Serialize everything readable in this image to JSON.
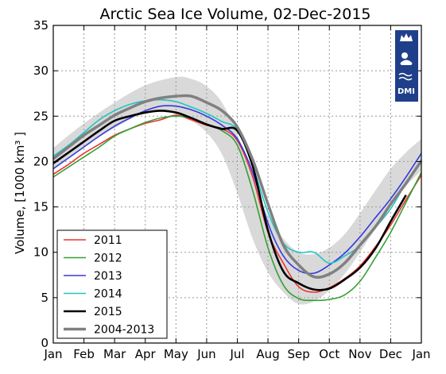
{
  "chart_data": {
    "type": "line",
    "title": "Arctic Sea Ice Volume, 02-Dec-2015",
    "ylabel": "Volume, [1000 km³ ]",
    "xlabel": "",
    "ylim": [
      0,
      35
    ],
    "xlim": [
      0,
      12
    ],
    "grid": true,
    "legend_position": "bottom-left",
    "x_tick_labels": [
      "Jan",
      "Feb",
      "Mar",
      "Apr",
      "May",
      "Jun",
      "Jul",
      "Aug",
      "Sep",
      "Oct",
      "Nov",
      "Dec",
      "Jan"
    ],
    "y_ticks": [
      0,
      5,
      10,
      15,
      20,
      25,
      30,
      35
    ],
    "x": [
      0,
      0.5,
      1,
      1.5,
      2,
      2.5,
      3,
      3.5,
      4,
      4.5,
      5,
      5.5,
      6,
      6.5,
      7,
      7.5,
      8,
      8.5,
      9,
      9.5,
      10,
      10.5,
      11,
      11.5,
      12
    ],
    "band": {
      "name": "2004-2013",
      "x": [
        0,
        1,
        2,
        3,
        4,
        4.5,
        5,
        5.5,
        6,
        6.5,
        7,
        7.5,
        8,
        8.5,
        9,
        9.5,
        10,
        10.5,
        11,
        11.5,
        12
      ],
      "upper": [
        21.5,
        24.2,
        26.5,
        28.4,
        29.3,
        29.1,
        28.3,
        26.5,
        23.0,
        18.2,
        14.0,
        11.5,
        10.0,
        9.8,
        10.5,
        12.0,
        14.3,
        16.8,
        19.2,
        21.0,
        22.5
      ],
      "lower": [
        19.2,
        21.6,
        23.7,
        25.3,
        25.3,
        24.5,
        23.2,
        20.8,
        16.5,
        11.5,
        7.8,
        5.6,
        4.3,
        4.6,
        5.8,
        7.6,
        10.0,
        12.6,
        15.1,
        17.3,
        19.0
      ]
    },
    "series": [
      {
        "name": "2011",
        "color": "#ee3333",
        "values": [
          18.6,
          19.7,
          20.9,
          21.9,
          22.9,
          23.6,
          24.2,
          24.6,
          25.1,
          24.6,
          24.0,
          23.6,
          22.3,
          18.3,
          12.2,
          8.8,
          6.2,
          5.6,
          6.1,
          7.1,
          8.5,
          10.6,
          13.0,
          15.8,
          18.5
        ]
      },
      {
        "name": "2012",
        "color": "#33a033",
        "values": [
          18.3,
          19.4,
          20.5,
          21.6,
          22.8,
          23.6,
          24.3,
          24.8,
          25.0,
          24.8,
          24.1,
          23.4,
          21.8,
          16.8,
          10.5,
          6.4,
          4.9,
          4.7,
          4.8,
          5.3,
          6.8,
          9.4,
          12.2,
          15.5,
          18.8
        ]
      },
      {
        "name": "2013",
        "color": "#3838e0",
        "values": [
          19.2,
          20.4,
          21.6,
          22.8,
          23.9,
          24.8,
          25.6,
          26.1,
          26.1,
          25.7,
          25.0,
          24.0,
          22.5,
          18.8,
          13.2,
          9.6,
          8.0,
          7.7,
          8.6,
          9.9,
          11.7,
          13.8,
          15.9,
          18.3,
          20.9
        ]
      },
      {
        "name": "2014",
        "color": "#22c4c4",
        "values": [
          20.6,
          21.8,
          23.2,
          24.6,
          25.6,
          26.3,
          26.7,
          26.8,
          26.6,
          26.0,
          25.3,
          24.4,
          23.5,
          19.5,
          14.4,
          11.0,
          10.0,
          10.0,
          8.8,
          9.6,
          10.7,
          12.7,
          14.8,
          17.6,
          19.9
        ]
      },
      {
        "name": "2015",
        "color": "#000000",
        "values": [
          19.8,
          21.0,
          22.2,
          23.4,
          24.5,
          25.0,
          25.4,
          25.6,
          25.4,
          24.8,
          24.1,
          23.6,
          23.4,
          19.5,
          12.4,
          7.9,
          6.6,
          5.9,
          6.0,
          7.0,
          8.3,
          10.4,
          13.4,
          16.3,
          null
        ]
      },
      {
        "name": "2004-2013",
        "color": "#808080",
        "values": [
          20.3,
          21.6,
          22.9,
          24.0,
          25.1,
          25.9,
          26.6,
          27.0,
          27.2,
          27.2,
          26.5,
          25.6,
          23.8,
          20.2,
          15.3,
          10.8,
          8.6,
          7.3,
          7.6,
          8.8,
          10.8,
          12.8,
          15.3,
          17.6,
          20.1
        ]
      }
    ]
  },
  "logo": {
    "text": "DMI"
  }
}
